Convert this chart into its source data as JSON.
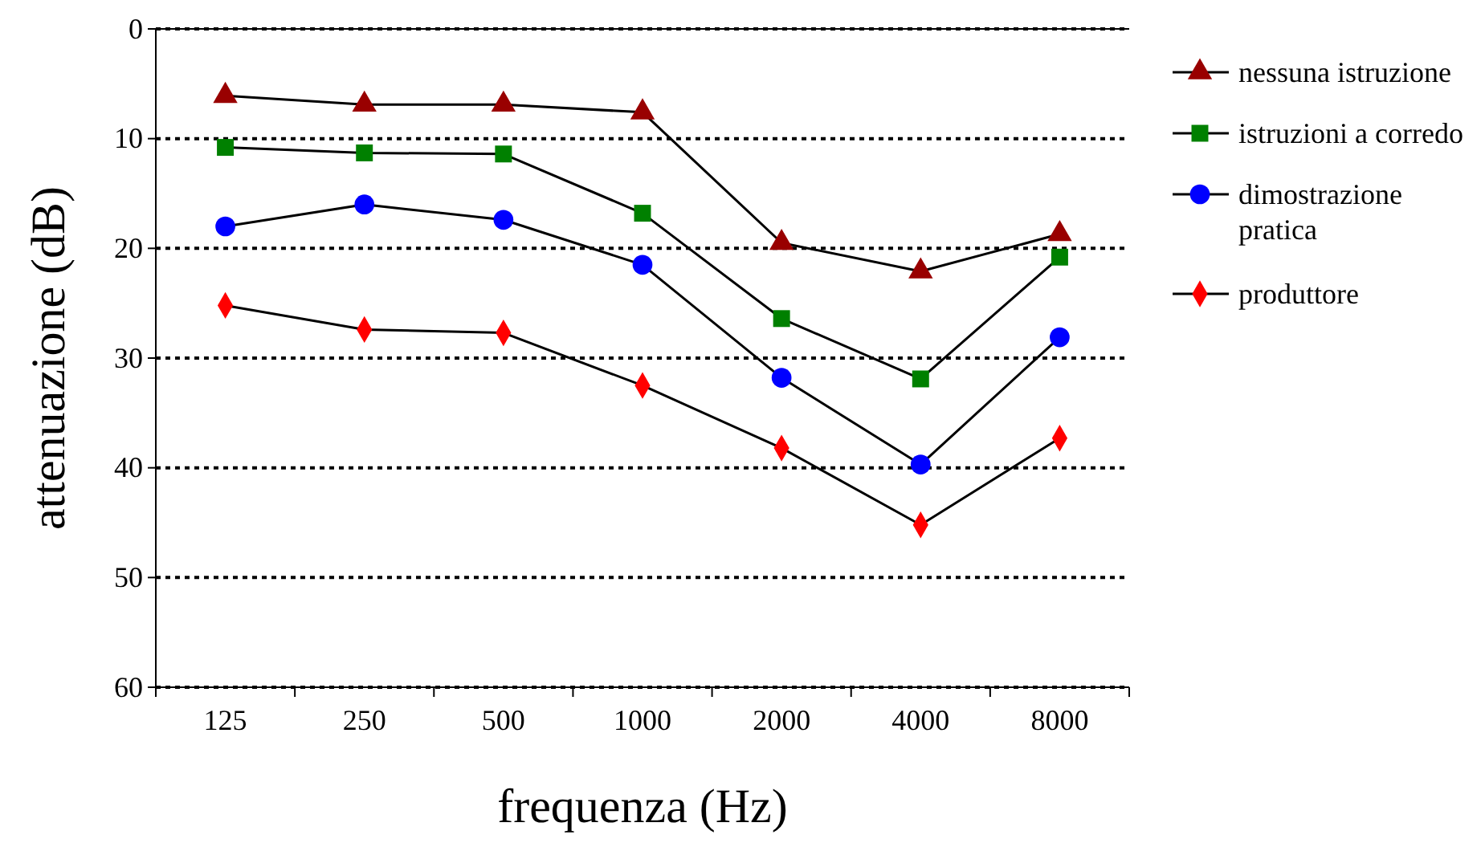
{
  "chart_data": {
    "type": "line",
    "xlabel": "frequenza (Hz)",
    "ylabel": "attenuazione (dB)",
    "categories": [
      "125",
      "250",
      "500",
      "1000",
      "2000",
      "4000",
      "8000"
    ],
    "ylim": [
      60,
      0
    ],
    "yticks": [
      0,
      10,
      20,
      30,
      40,
      50,
      60
    ],
    "grid": "y",
    "legend": "right",
    "line_style": "solid",
    "series": [
      {
        "name": "nessuna istruzione",
        "color": "#990000",
        "marker": "triangle",
        "values": [
          6.1,
          6.9,
          6.9,
          7.6,
          19.5,
          22.1,
          18.7
        ]
      },
      {
        "name": "istruzioni a corredo",
        "color": "#008000",
        "marker": "square",
        "values": [
          10.8,
          11.3,
          11.4,
          16.8,
          26.4,
          31.9,
          20.8
        ]
      },
      {
        "name": "dimostrazione pratica",
        "color": "#0000ff",
        "marker": "circle",
        "values": [
          18.0,
          16.0,
          17.4,
          21.5,
          31.8,
          39.7,
          28.1
        ]
      },
      {
        "name": "produttore",
        "color": "#ff0000",
        "marker": "diamond",
        "values": [
          25.2,
          27.4,
          27.7,
          32.5,
          38.2,
          45.2,
          37.3
        ]
      }
    ]
  }
}
